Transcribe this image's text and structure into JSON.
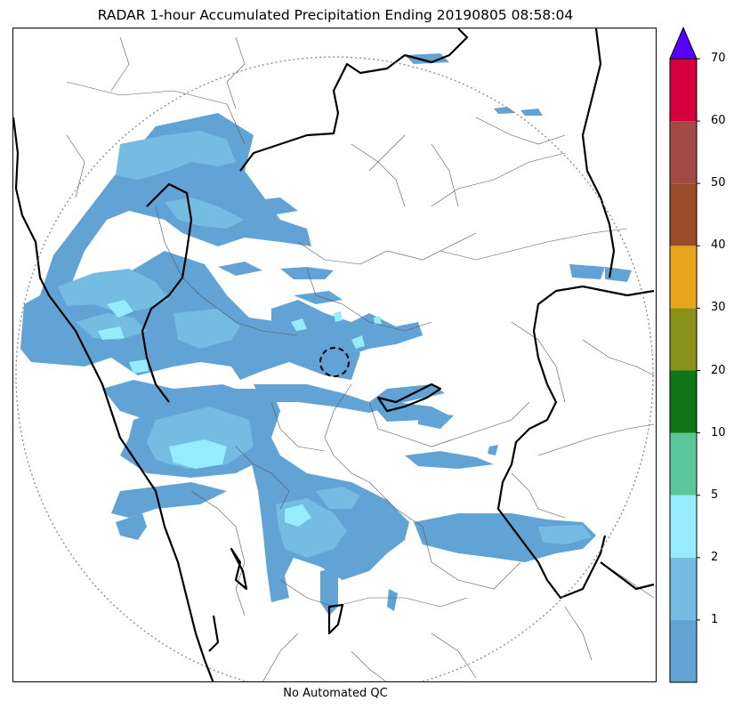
{
  "title": "RADAR 1-hour Accumulated Precipitation Ending 20190805 08:58:04",
  "footer": "No Automated QC",
  "colorbar": {
    "levels": [
      {
        "color": "#62a3d6"
      },
      {
        "color": "#74bce1",
        "label": "1"
      },
      {
        "color": "#95ecfd",
        "label": "2"
      },
      {
        "color": "#5cc69b",
        "label": "5"
      },
      {
        "color": "#0e7518",
        "label": "10"
      },
      {
        "color": "#8a9317",
        "label": "20"
      },
      {
        "color": "#e8a51b",
        "label": "30"
      },
      {
        "color": "#9a4b27",
        "label": "40"
      },
      {
        "color": "#a44a44",
        "label": "50"
      },
      {
        "color": "#d4003e",
        "label": "60"
      }
    ],
    "top_label": "70",
    "extend_color": "#5500ff"
  },
  "colors": {
    "coastline": "#000000",
    "boundary": "#555555",
    "range_ring": "#888888"
  }
}
